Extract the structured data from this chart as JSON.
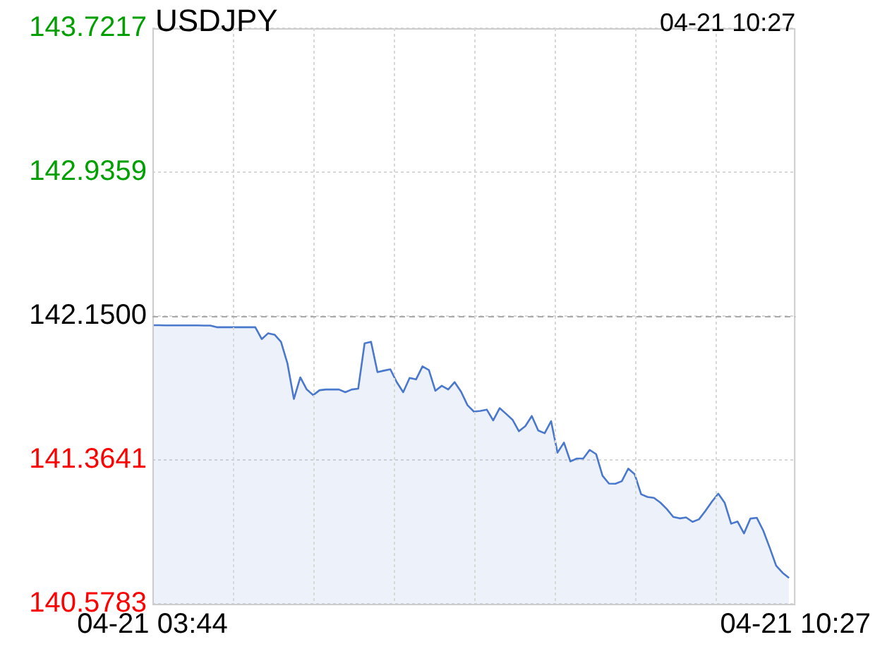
{
  "chart_data": {
    "type": "area",
    "title": "USDJPY",
    "annotations": [
      "04-21 10:27"
    ],
    "categories": [
      "04-21 03:44",
      null,
      null,
      null,
      null,
      null,
      null,
      null,
      null,
      null,
      null,
      null,
      null,
      null,
      null,
      null,
      null,
      null,
      null,
      null,
      null,
      null,
      null,
      null,
      null,
      null,
      null,
      null,
      null,
      null,
      null,
      null,
      null,
      null,
      null,
      null,
      null,
      null,
      null,
      null,
      null,
      null,
      null,
      null,
      null,
      null,
      null,
      null,
      null,
      null,
      null,
      null,
      null,
      null,
      null,
      null,
      null,
      null,
      null,
      null,
      null,
      null,
      null,
      null,
      null,
      null,
      null,
      null,
      null,
      null,
      null,
      null,
      null,
      null,
      null,
      null,
      null,
      null,
      null,
      null,
      null,
      null,
      null,
      null,
      null,
      null,
      null,
      null,
      null,
      null,
      null,
      null,
      null,
      null,
      null,
      null,
      null,
      null,
      null,
      null,
      "04-21 10:27"
    ],
    "series": [
      {
        "color": "#4a78cc",
        "values": [
          142.1,
          142.1,
          142.099,
          142.099,
          142.099,
          142.099,
          142.099,
          142.099,
          142.098,
          142.098,
          142.089,
          142.089,
          142.089,
          142.089,
          142.089,
          142.089,
          142.089,
          142.024,
          142.056,
          142.048,
          142.009,
          141.891,
          141.697,
          141.815,
          141.749,
          141.718,
          141.745,
          141.749,
          141.749,
          141.749,
          141.734,
          141.749,
          141.753,
          142.001,
          142.009,
          141.844,
          141.852,
          141.859,
          141.789,
          141.734,
          141.812,
          141.804,
          141.875,
          141.855,
          141.742,
          141.769,
          141.749,
          141.789,
          141.737,
          141.663,
          141.628,
          141.632,
          141.639,
          141.58,
          141.647,
          141.616,
          141.584,
          141.521,
          141.549,
          141.604,
          141.525,
          141.51,
          141.576,
          141.404,
          141.459,
          141.356,
          141.372,
          141.372,
          141.419,
          141.396,
          141.278,
          141.235,
          141.234,
          141.248,
          141.317,
          141.286,
          141.177,
          141.162,
          141.157,
          141.131,
          141.096,
          141.053,
          141.045,
          141.05,
          141.026,
          141.04,
          141.086,
          141.136,
          141.18,
          141.13,
          141.016,
          141.028,
          140.963,
          141.044,
          141.048,
          140.978,
          140.885,
          140.787,
          140.748,
          140.72,
          null
        ]
      }
    ],
    "ylim": [
      140.5783,
      143.7217
    ],
    "yticks": [
      {
        "value": 140.5783,
        "label": "140.5783"
      },
      {
        "value": 141.3641,
        "label": "141.3641"
      },
      {
        "value": 142.15,
        "label": "142.1500"
      },
      {
        "value": 142.9359,
        "label": "142.9359"
      },
      {
        "value": 143.7217,
        "label": "143.7217"
      }
    ],
    "ref_lines": [
      {
        "axis": "y",
        "value": 142.15,
        "color": "#aaaaaa",
        "line_style": "dashed"
      }
    ],
    "grid": true,
    "legend": false,
    "marker": "none",
    "line_style": "solid"
  }
}
